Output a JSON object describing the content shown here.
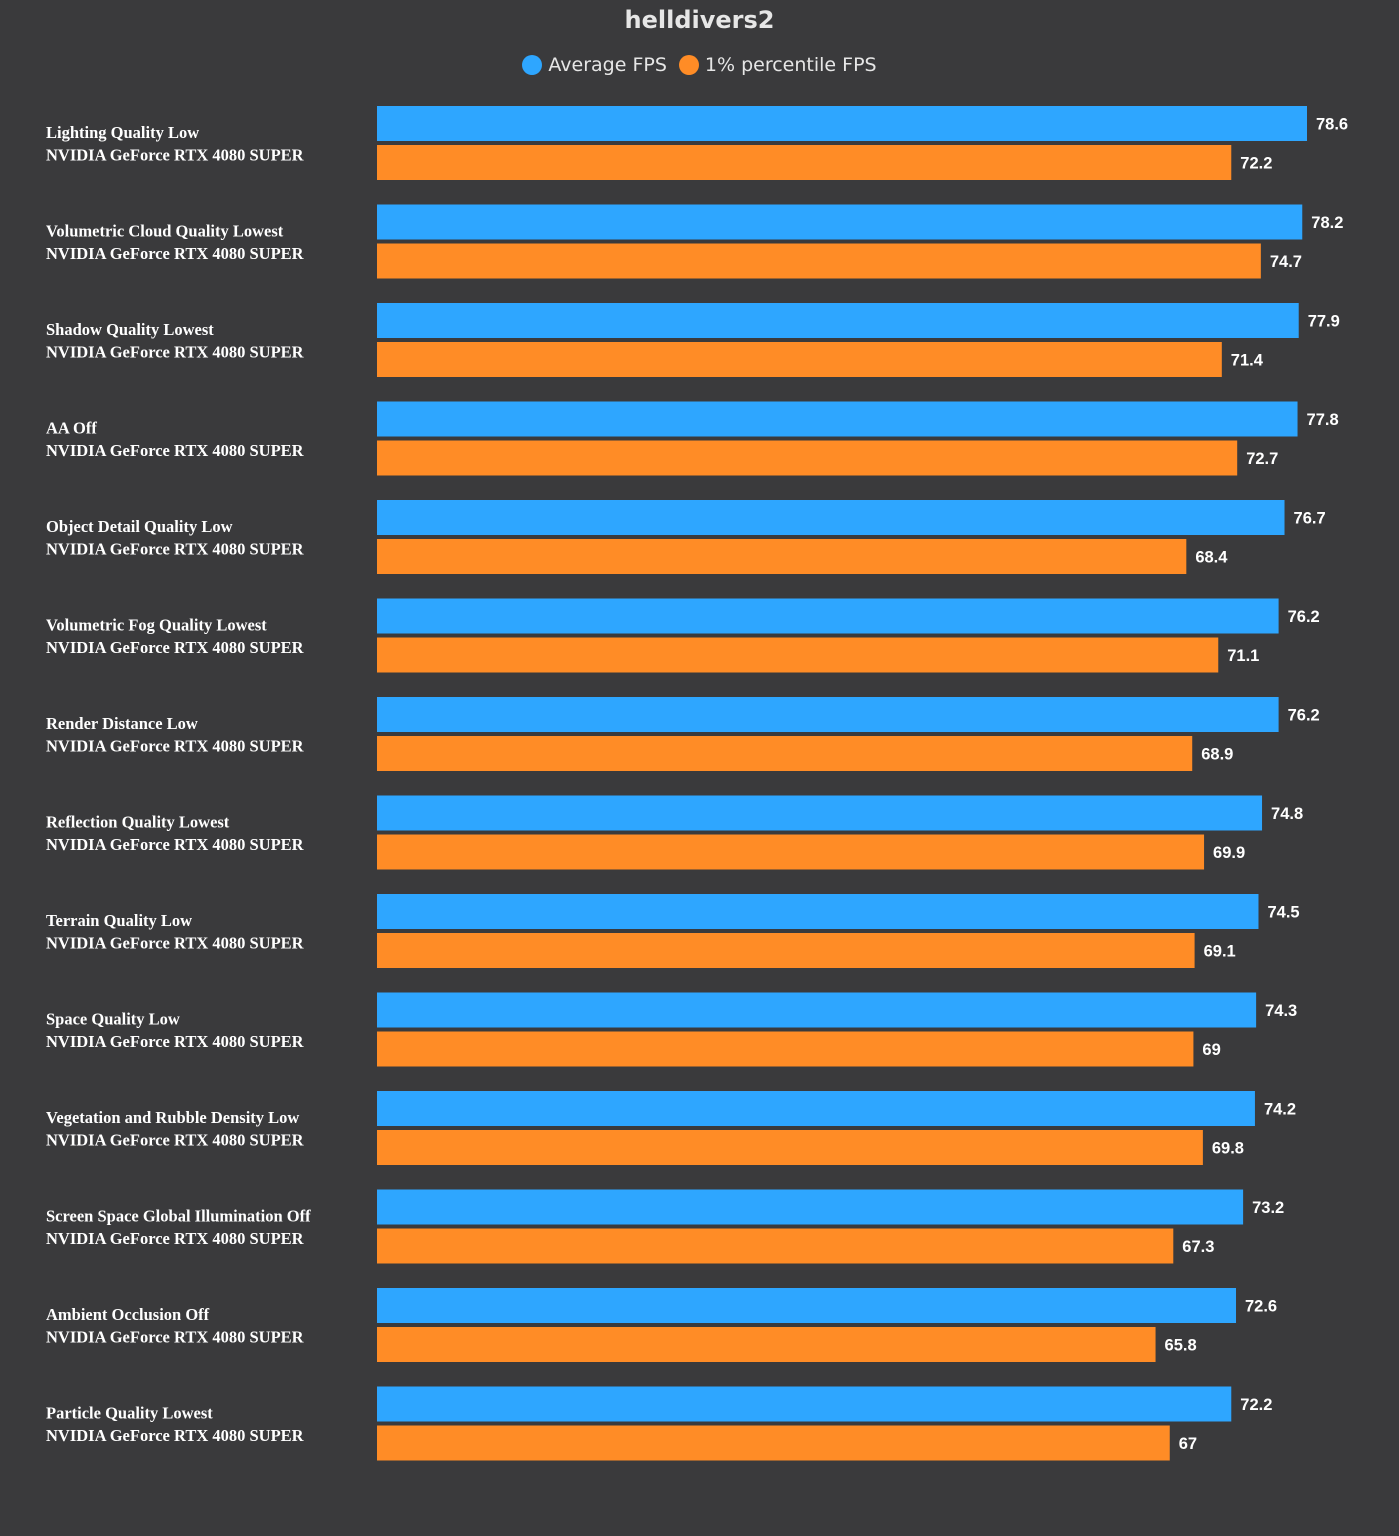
{
  "colors": {
    "background": "#3a3a3c",
    "average": "#2ea6ff",
    "percentile": "#ff8c26"
  },
  "chart_data": {
    "type": "bar",
    "orientation": "horizontal",
    "title": "helldivers2",
    "legend_position": "top-center",
    "grid": false,
    "categories": [
      [
        "Lighting Quality Low",
        "NVIDIA GeForce RTX 4080 SUPER"
      ],
      [
        "Volumetric Cloud Quality Lowest",
        "NVIDIA GeForce RTX 4080 SUPER"
      ],
      [
        "Shadow Quality Lowest",
        "NVIDIA GeForce RTX 4080 SUPER"
      ],
      [
        "AA Off",
        "NVIDIA GeForce RTX 4080 SUPER"
      ],
      [
        "Object Detail Quality Low",
        "NVIDIA GeForce RTX 4080 SUPER"
      ],
      [
        "Volumetric Fog Quality Lowest",
        "NVIDIA GeForce RTX 4080 SUPER"
      ],
      [
        "Render Distance Low",
        "NVIDIA GeForce RTX 4080 SUPER"
      ],
      [
        "Reflection Quality Lowest",
        "NVIDIA GeForce RTX 4080 SUPER"
      ],
      [
        "Terrain Quality Low",
        "NVIDIA GeForce RTX 4080 SUPER"
      ],
      [
        "Space Quality Low",
        "NVIDIA GeForce RTX 4080 SUPER"
      ],
      [
        "Vegetation and Rubble Density Low",
        "NVIDIA GeForce RTX 4080 SUPER"
      ],
      [
        "Screen Space Global Illumination Off",
        "NVIDIA GeForce RTX 4080 SUPER"
      ],
      [
        "Ambient Occlusion Off",
        "NVIDIA GeForce RTX 4080 SUPER"
      ],
      [
        "Particle Quality Lowest",
        "NVIDIA GeForce RTX 4080 SUPER"
      ]
    ],
    "series": [
      {
        "name": "Average FPS",
        "color": "#2ea6ff",
        "values": [
          78.6,
          78.2,
          77.9,
          77.8,
          76.7,
          76.2,
          76.2,
          74.8,
          74.5,
          74.3,
          74.2,
          73.2,
          72.6,
          72.2
        ]
      },
      {
        "name": "1% percentile FPS",
        "color": "#ff8c26",
        "values": [
          72.2,
          74.7,
          71.4,
          72.7,
          68.4,
          71.1,
          68.9,
          69.9,
          69.1,
          69,
          69.8,
          67.3,
          65.8,
          67
        ]
      }
    ],
    "xlim": [
      0,
      78.6
    ]
  }
}
